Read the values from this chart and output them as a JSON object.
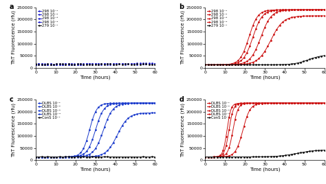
{
  "panels": [
    "a",
    "b",
    "c",
    "d"
  ],
  "time_range": [
    0,
    60
  ],
  "y_max": 250000,
  "y_ticks": [
    0,
    50000,
    100000,
    150000,
    200000,
    250000
  ],
  "x_ticks": [
    0,
    10,
    20,
    30,
    40,
    50,
    60
  ],
  "xlabel": "Time (hours)",
  "ylabel": "ThT Fluorescence (rfu)",
  "panel_a": {
    "color": "#1a1aCC",
    "legend_labels": [
      "298 10⁻¹",
      "298 10⁻²",
      "298 10⁻³",
      "298 10⁻⁴",
      "279 10⁻¹"
    ],
    "flat_value": 15000
  },
  "panel_b": {
    "color_active": "#CC1111",
    "color_black": "#111111",
    "legend_labels": [
      "298 10⁻¹",
      "298 10⁻²",
      "298 10⁻³",
      "298 10⁻⁴",
      "279 10⁻¹"
    ],
    "sigmoidal_curves": [
      {
        "t50": 22,
        "ymax": 240000,
        "k": 0.45
      },
      {
        "t50": 24,
        "ymax": 240000,
        "k": 0.42
      },
      {
        "t50": 28,
        "ymax": 240000,
        "k": 0.38
      },
      {
        "t50": 33,
        "ymax": 215000,
        "k": 0.32
      },
      {
        "t50": 52,
        "ymax": 55000,
        "k": 0.28
      }
    ],
    "flat_value": 13000
  },
  "panel_c": {
    "color": "#1a3aCC",
    "legend_labels": [
      "DLBS 10⁻¹",
      "DLBS 10⁻²",
      "DLBS 10⁻³",
      "DLBS 10⁻⁴",
      "ConS 10⁻¹"
    ],
    "sigmoidal_curves": [
      {
        "t50": 27,
        "ymax": 235000,
        "k": 0.55
      },
      {
        "t50": 30,
        "ymax": 235000,
        "k": 0.48
      },
      {
        "t50": 34,
        "ymax": 235000,
        "k": 0.42
      },
      {
        "t50": 41,
        "ymax": 195000,
        "k": 0.36
      }
    ],
    "flat_value": 13000
  },
  "panel_d": {
    "color_active": "#CC1111",
    "color_black": "#111111",
    "legend_labels": [
      "DLBS 10⁻¹",
      "DLBS 10⁻²",
      "DLBS 10⁻³",
      "DLBS 10⁻⁴",
      "ConS 10⁻¹"
    ],
    "sigmoidal_curves": [
      {
        "t50": 11,
        "ymax": 235000,
        "k": 1.0
      },
      {
        "t50": 12,
        "ymax": 235000,
        "k": 0.9
      },
      {
        "t50": 14,
        "ymax": 235000,
        "k": 0.8
      },
      {
        "t50": 19,
        "ymax": 235000,
        "k": 0.55
      }
    ],
    "flat_value": 13000,
    "black_curve": {
      "t50": 46,
      "ymax": 42000,
      "k": 0.22
    }
  },
  "marker_size": 2.0,
  "line_width": 0.7,
  "font_size": 4.5,
  "label_font_size": 5,
  "tick_font_size": 4.5,
  "legend_font_size": 3.8
}
